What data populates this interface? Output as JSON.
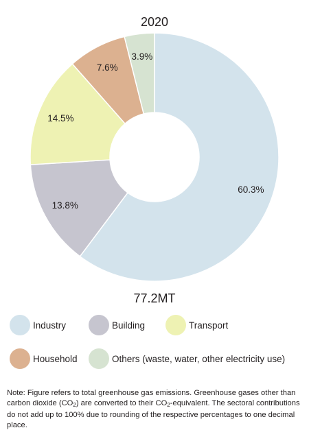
{
  "chart_data": {
    "type": "pie",
    "title": "2020",
    "total_label": "77.2MT",
    "donut": true,
    "series": [
      {
        "name": "Industry",
        "value": 60.3,
        "label": "60.3%",
        "color": "#d3e3ec"
      },
      {
        "name": "Building",
        "value": 13.8,
        "label": "13.8%",
        "color": "#c6c5cf"
      },
      {
        "name": "Transport",
        "value": 14.5,
        "label": "14.5%",
        "color": "#eef2b3"
      },
      {
        "name": "Household",
        "value": 7.6,
        "label": "7.6%",
        "color": "#dcb190"
      },
      {
        "name": "Others (waste, water, other electricity use)",
        "value": 3.9,
        "label": "3.9%",
        "color": "#d6e3d1"
      }
    ],
    "legend_position": "bottom"
  },
  "note": {
    "part1": "Note: Figure refers to total greenhouse gas emissions. Greenhouse gases other than carbon dioxide (CO",
    "sub1": "2",
    "part2": ") are converted to their CO",
    "sub2": "2",
    "part3": "-equivalent. The sectoral contributions do not add up to 100% due to rounding of the respective percentages to one decimal place."
  }
}
